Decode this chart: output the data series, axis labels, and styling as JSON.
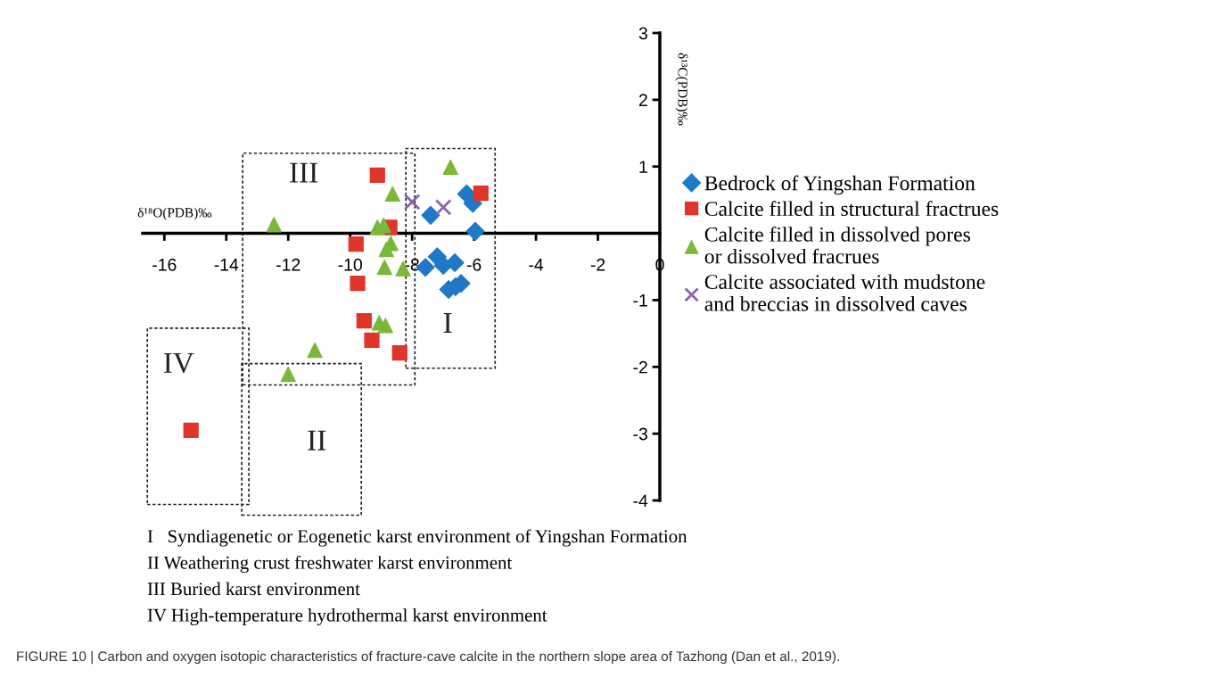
{
  "chart_data": {
    "type": "scatter",
    "xlabel": "δ¹⁸O(PDB)‰",
    "ylabel": "δ¹³C(PDB)‰",
    "xlim": [
      -16.7,
      0
    ],
    "ylim": [
      -4,
      3
    ],
    "xticks": [
      -16,
      -14,
      -12,
      -10,
      -8,
      -6,
      -4,
      -2,
      0
    ],
    "yticks": [
      -4,
      -3,
      -2,
      -1,
      {
        "value": 0,
        "label": null
      },
      1,
      2,
      3
    ],
    "grid": false,
    "legend": "right",
    "series": [
      {
        "name": "Bedrock of Yingshan Formation",
        "color": "#1f78c8",
        "marker": "diamond",
        "x": [
          -7.4,
          -6.24,
          -6.04,
          -5.96,
          -7.57,
          -7.19,
          -6.99,
          -6.62,
          -6.82,
          -6.42,
          -6.6
        ],
        "values": [
          0.27,
          0.59,
          0.45,
          0.03,
          -0.51,
          -0.35,
          -0.48,
          -0.44,
          -0.84,
          -0.75,
          -0.8
        ]
      },
      {
        "name": "Calcite filled in structural fractrues",
        "color": "#e0352b",
        "marker": "square",
        "x": [
          -9.12,
          -5.78,
          -8.72,
          -9.81,
          -9.76,
          -9.55,
          -9.3,
          -8.4,
          -15.14
        ],
        "values": [
          0.87,
          0.6,
          0.09,
          -0.16,
          -0.75,
          -1.31,
          -1.6,
          -1.79,
          -2.95
        ]
      },
      {
        "name": "Calcite filled in dissolved pores\nor dissolved fracrues",
        "color": "#7ab83a",
        "marker": "triangle",
        "x": [
          -6.76,
          -8.63,
          -12.46,
          -9.12,
          -8.92,
          -8.69,
          -8.83,
          -8.89,
          -8.29,
          -9.06,
          -8.86,
          -11.14,
          -12.0
        ],
        "values": [
          0.99,
          0.59,
          0.13,
          0.09,
          0.12,
          -0.15,
          -0.24,
          -0.51,
          -0.53,
          -1.34,
          -1.38,
          -1.75,
          -2.11
        ]
      },
      {
        "name": "Calcite associated with mudstone\nand breccias in dissolved caves",
        "color": "#8a63b0",
        "marker": "cross",
        "x": [
          -8.0,
          -6.99
        ],
        "values": [
          0.47,
          0.39
        ]
      }
    ],
    "annotations": [
      "I",
      "II",
      "III",
      "IV",
      "I   Syndiagenetic or Eogenetic karst environment of Yingshan Formation",
      "II Weathering crust freshwater karst environment",
      "III Buried karst environment",
      "IV High-temperature hydrothermal karst environment",
      "FIGURE 10 | Carbon and oxygen isotopic characteristics of fracture-cave calcite in the northern slope area of Tazhong (Dan et al., 2019)."
    ]
  }
}
